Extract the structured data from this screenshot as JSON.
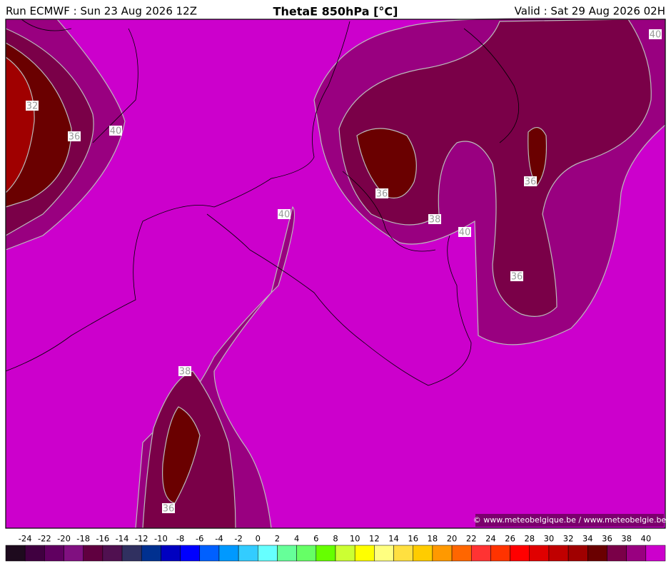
{
  "header": {
    "run": "Run ECMWF : Sun 23 Aug 2026 12Z",
    "title": "ThetaE 850hPa [°C]",
    "valid": "Valid : Sat 29 Aug 2026 02H"
  },
  "contour_labels": [
    32,
    36,
    40,
    36,
    38,
    40,
    40,
    36,
    36,
    38,
    36,
    40
  ],
  "credit": "© www.meteobelgique.be / www.meteobelgie.be",
  "colorbar": {
    "labels": [
      -24,
      -22,
      -20,
      -18,
      -16,
      -14,
      -12,
      -10,
      -8,
      -6,
      -4,
      -2,
      0,
      2,
      4,
      6,
      8,
      10,
      12,
      14,
      16,
      18,
      20,
      22,
      24,
      26,
      28,
      30,
      32,
      34,
      36,
      38,
      40
    ],
    "colors": [
      "#1e0a1e",
      "#400040",
      "#600060",
      "#801080",
      "#600040",
      "#501050",
      "#303060",
      "#003090",
      "#0000c0",
      "#0000ff",
      "#0060ff",
      "#0099ff",
      "#33ccff",
      "#66ffff",
      "#66ff99",
      "#66ff66",
      "#66ff00",
      "#ccff33",
      "#ffff00",
      "#ffff80",
      "#ffe040",
      "#ffcc00",
      "#ff9900",
      "#ff6600",
      "#ff3333",
      "#ff3300",
      "#ff0000",
      "#e00000",
      "#c00000",
      "#a00000",
      "#6a0000",
      "#7a0048",
      "#990080",
      "#cc00cc"
    ]
  }
}
